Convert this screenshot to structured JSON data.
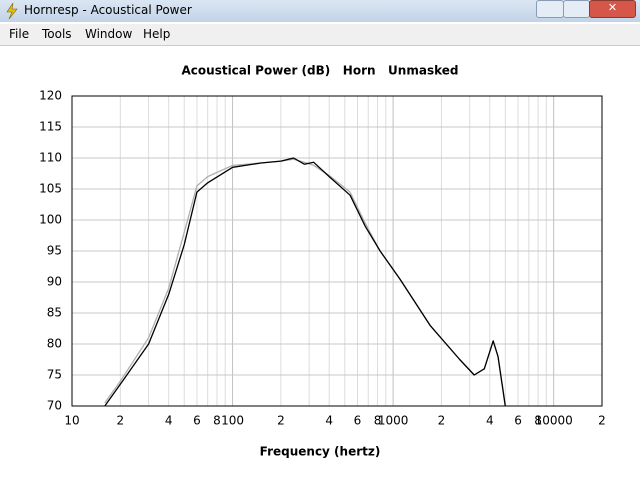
{
  "window": {
    "title": "Hornresp - Acoustical Power"
  },
  "menu": [
    "File",
    "Tools",
    "Window",
    "Help"
  ],
  "chart_data": {
    "type": "line",
    "title": "Acoustical Power (dB)   Horn   Unmasked",
    "x_label": "Frequency (hertz)",
    "log_x": true,
    "grid": true,
    "x": [
      16,
      20,
      30,
      40,
      50,
      60,
      70,
      100,
      150,
      200,
      240,
      280,
      320,
      400,
      540,
      670,
      830,
      1100,
      1700,
      2600,
      3200,
      3700,
      4200,
      4500,
      5000
    ],
    "series": [
      {
        "color": "#b0b0b0",
        "values": [
          70.5,
          74,
          81,
          89,
          98,
          105.5,
          107,
          108.8,
          109.2,
          109.5,
          109.8,
          109.3,
          108.8,
          107.2,
          104.5,
          99.5,
          95,
          90.5,
          83,
          77.5,
          75,
          76,
          80.5,
          78,
          70
        ]
      },
      {
        "color": "#000000",
        "values": [
          70,
          73.5,
          80,
          88,
          96,
          104.5,
          106,
          108.5,
          109.2,
          109.5,
          110,
          109,
          109.3,
          107,
          104,
          99,
          95,
          90.5,
          83,
          77.5,
          75,
          76,
          80.5,
          78,
          70
        ]
      }
    ],
    "xlim": [
      10,
      20000
    ],
    "xticks": [
      10,
      {
        "value": 20,
        "label": "2"
      },
      {
        "value": 40,
        "label": "4"
      },
      {
        "value": 60,
        "label": "6"
      },
      {
        "value": 80,
        "label": "8"
      },
      100,
      {
        "value": 200,
        "label": "2"
      },
      {
        "value": 400,
        "label": "4"
      },
      {
        "value": 600,
        "label": "6"
      },
      {
        "value": 800,
        "label": "8"
      },
      1000,
      {
        "value": 2000,
        "label": "2"
      },
      {
        "value": 4000,
        "label": "4"
      },
      {
        "value": 6000,
        "label": "6"
      },
      {
        "value": 8000,
        "label": "8"
      },
      10000,
      {
        "value": 20000,
        "label": "2"
      }
    ],
    "xminor": [
      30,
      50,
      70,
      90,
      300,
      500,
      700,
      900,
      3000,
      5000,
      7000,
      9000
    ],
    "ylim": [
      70,
      120
    ],
    "yticks": [
      70,
      75,
      80,
      85,
      90,
      95,
      100,
      105,
      110,
      115,
      120
    ]
  }
}
